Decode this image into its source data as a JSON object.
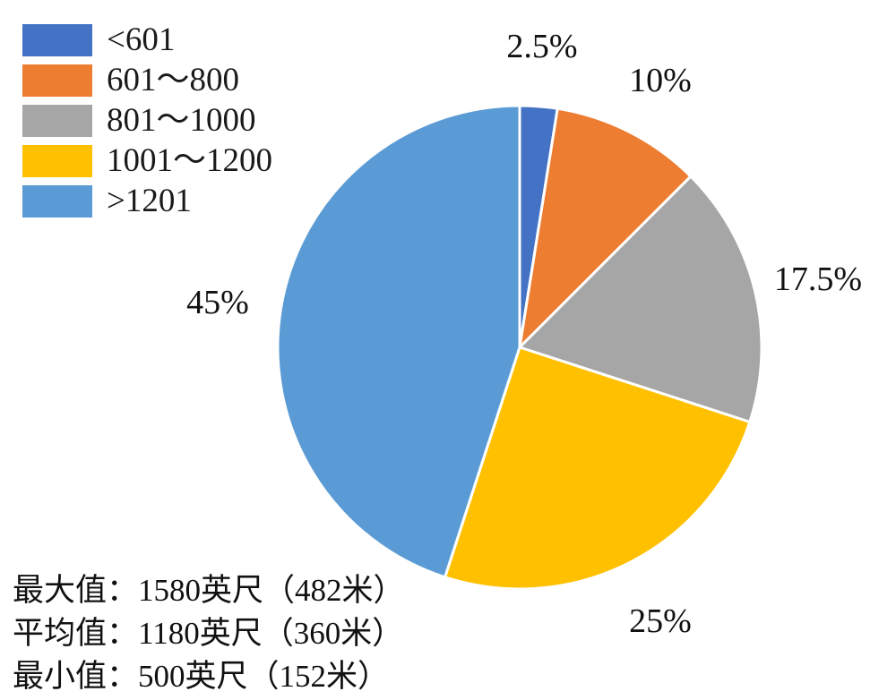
{
  "chart_data": {
    "type": "pie",
    "title": "",
    "legend_position": "top-left",
    "start_angle_deg": 0,
    "direction": "clockwise",
    "slices": [
      {
        "label": "<601",
        "value": 2.5,
        "display": "2.5%",
        "color": "#4472C4"
      },
      {
        "label": "601～800",
        "value": 10,
        "display": "10%",
        "color": "#ED7D31"
      },
      {
        "label": "801～1000",
        "value": 17.5,
        "display": "17.5%",
        "color": "#A6A6A6"
      },
      {
        "label": "1001～1200",
        "value": 25,
        "display": "25%",
        "color": "#FFC000"
      },
      {
        "label": ">1201",
        "value": 45,
        "display": "45%",
        "color": "#5B9BD5"
      }
    ],
    "slice_separator_color": "#FFFFFF",
    "annotations": [
      "最大值：1580英尺（482米）",
      "平均值：1180英尺（360米）",
      "最小值：500英尺（152米）"
    ]
  },
  "stats": {
    "line1": "最大值：1580英尺（482米）",
    "line2": "平均值：1180英尺（360米）",
    "line3": "最小值：500英尺（152米）"
  }
}
